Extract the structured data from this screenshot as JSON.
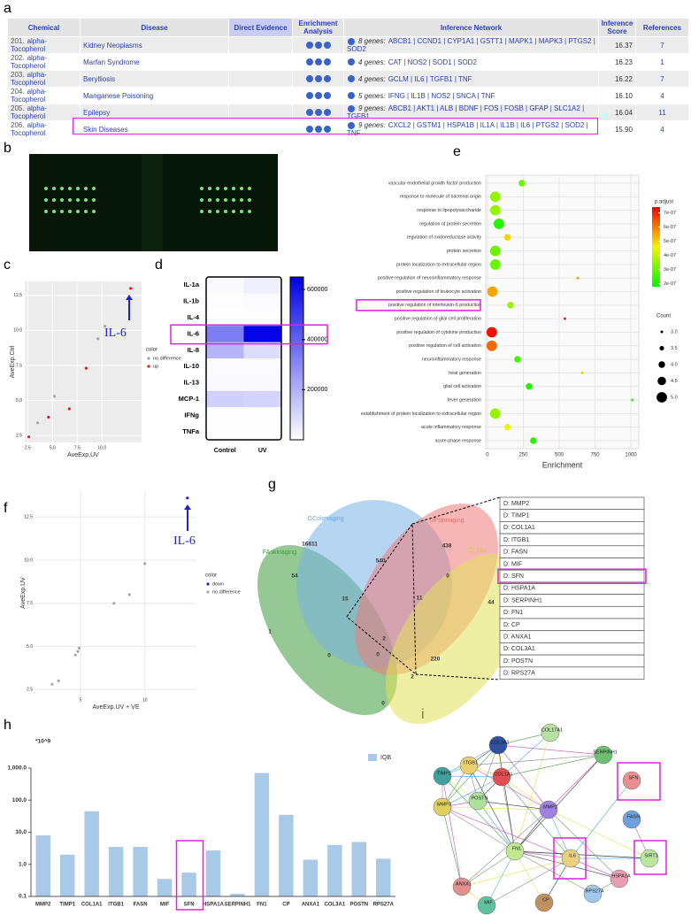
{
  "panel_labels": [
    "a",
    "b",
    "c",
    "d",
    "e",
    "f",
    "g",
    "h",
    "i"
  ],
  "table": {
    "header": [
      "Chemical",
      "Disease",
      "Direct Evidence",
      "Enrichment Analysis",
      "Inference Network",
      "Inference Score",
      "References"
    ],
    "rows": [
      [
        "201.",
        "alpha-Tocopherol",
        "Kidney Neoplasms",
        "8 genes:",
        "ABCB1 | CCND1 | CYP1A1 | GSTT1 | MAPK1 | MAPK3 | PTGS2 | SOD2",
        "16.37",
        "7"
      ],
      [
        "202.",
        "alpha-Tocopherol",
        "Marfan Syndrome",
        "4 genes:",
        "CAT | NOS2 | SOD1 | SOD2",
        "16.23",
        "1"
      ],
      [
        "203.",
        "alpha-Tocopherol",
        "Berylliosis",
        "4 genes:",
        "GCLM | IL6 | TGFB1 | TNF",
        "16.22",
        "7"
      ],
      [
        "204.",
        "alpha-Tocopherol",
        "Manganese Poisoning",
        "5 genes:",
        "IFNG | IL1B | NOS2 | SNCA | TNF",
        "16.10",
        "4"
      ],
      [
        "205.",
        "alpha-Tocopherol",
        "Epilepsy",
        "9 genes:",
        "ABCB1 | AKT1 | ALB | BDNF | FOS | FOSB | GFAP | SLC1A2 | TGFB1",
        "16.04",
        "11"
      ],
      [
        "206.",
        "alpha-Tocopherol",
        "Skin Diseases",
        "9 genes:",
        "CXCL2 | GSTM1 | HSPA1B | IL1A | IL1B | IL6 | PTGS2 | SOD2 | TNF",
        "15.90",
        "4"
      ]
    ]
  },
  "chart_data": [
    {
      "type": "scatter",
      "xlabel": "AveExp.UV",
      "ylabel": "AveExp.Ctrl",
      "legend_title": "color",
      "annotation": "IL-6",
      "grid": true,
      "xlim": [
        2.2,
        14
      ],
      "ylim": [
        2,
        13.5
      ],
      "xticks": [
        2.5,
        {
          "value": 5,
          "label": "5.0"
        },
        7.5,
        {
          "value": 10,
          "label": "10.0"
        }
      ],
      "yticks": [
        2.5,
        {
          "value": 5,
          "label": "5.0"
        },
        7.5,
        {
          "value": 10,
          "label": "10.0"
        },
        12.5
      ],
      "series": [
        {
          "name": "no.difference",
          "color": "#a6a6a6",
          "x": [
            3.5,
            5.2,
            9.6,
            10.3
          ],
          "values": [
            3.4,
            5.3,
            9.4,
            10.3
          ]
        },
        {
          "name": "up",
          "color": "#e41a1c",
          "x": [
            2.6,
            4.6,
            6.7,
            8.4,
            12.9
          ],
          "values": [
            2.4,
            3.8,
            4.4,
            7.3,
            13
          ]
        }
      ]
    },
    {
      "type": "heatmap",
      "categories": [
        "IL-1a",
        "IL-1b",
        "IL-4",
        "IL-6",
        "IL-8",
        "IL-10",
        "IL-13",
        "MCP-1",
        "IFNg",
        "TNFa"
      ],
      "columns": [
        "Control",
        "UV"
      ],
      "values": [
        [
          15000,
          40000
        ],
        [
          5000,
          10000
        ],
        [
          3000,
          3000
        ],
        [
          330000,
          640000
        ],
        [
          190000,
          90000
        ],
        [
          10000,
          10000
        ],
        [
          15000,
          15000
        ],
        [
          120000,
          110000
        ],
        [
          2000,
          2000
        ],
        [
          2000,
          2000
        ]
      ],
      "clim": [
        0,
        650000
      ],
      "colorbar_ticks": [
        200000,
        400000,
        600000
      ],
      "color": "#0000e6"
    },
    {
      "type": "dot",
      "xlabel": "Enrichment",
      "color_title": "p.adjust",
      "size_title": "Count",
      "categories": [
        "vascular endothelial growth factor production",
        "response to molecule of bacterial origin",
        "response to lipopolysaccharide",
        "regulation of protein secretion",
        "regulation of oxidoreductase activity",
        "protein secretion",
        "protein localization to extracellular region",
        "positive regulation of neuroinflammatory response",
        "positive regulation of leukocyte activation",
        "positive regulation of interleukin-6 production",
        "positive regulation of glial cell proliferation",
        "positive regulation of cytokine production",
        "positive regulation of cell activation",
        "neuroinflammatory response",
        "heat generation",
        "glial cell activation",
        "fever generation",
        "establishment of protein localization to extracellular region",
        "acute inflammatory response",
        "acute-phase response"
      ],
      "values": [
        240,
        55,
        55,
        80,
        140,
        55,
        55,
        630,
        35,
        160,
        540,
        30,
        30,
        210,
        660,
        290,
        1010,
        55,
        140,
        320
      ],
      "p_adjust": [
        3e-07,
        3.5e-07,
        3.5e-07,
        2.2e-07,
        5e-07,
        3e-07,
        3e-07,
        5.5e-07,
        5.5e-07,
        3.5e-07,
        7e-07,
        7.2e-07,
        6.2e-07,
        2.5e-07,
        5e-07,
        2.2e-07,
        2.5e-07,
        3.5e-07,
        4.5e-07,
        2.2e-07
      ],
      "count": [
        4,
        5,
        5,
        5,
        4,
        5,
        5,
        3,
        5,
        4,
        3,
        5,
        5,
        4,
        3,
        4,
        3,
        5,
        4,
        4
      ],
      "xlim": [
        -12,
        1055
      ],
      "xticks": [
        0,
        250,
        500,
        750,
        1000
      ],
      "clim": [
        1.8e-07,
        7.4e-07
      ],
      "colorbar_ticks": [
        {
          "value": 7e-07,
          "label": "7e-07"
        },
        {
          "value": 6e-07,
          "label": "6e-07"
        },
        {
          "value": 5e-07,
          "label": "5e-07"
        },
        {
          "value": 4e-07,
          "label": "4e-07"
        },
        {
          "value": 3e-07,
          "label": "3e-07"
        },
        {
          "value": 2e-07,
          "label": "2e-07"
        }
      ],
      "size_ticks": [
        {
          "value": 3,
          "label": "3.0"
        },
        3.5,
        {
          "value": 4,
          "label": "4.0"
        },
        4.5,
        {
          "value": 5,
          "label": "5.0"
        }
      ]
    },
    {
      "type": "scatter",
      "xlabel": "AveExp.UV + VE",
      "ylabel": "AveExp.UV",
      "legend_title": "color",
      "annotation": "IL-6",
      "grid": true,
      "xlim": [
        1.5,
        14
      ],
      "ylim": [
        2.2,
        14
      ],
      "xticks": [
        5,
        10
      ],
      "yticks": [
        2.5,
        {
          "value": 5,
          "label": "5.0"
        },
        7.5,
        {
          "value": 10,
          "label": "10.0"
        },
        12.5
      ],
      "series": [
        {
          "name": "down",
          "color": "#1f1fd6",
          "x": [
            13.3
          ],
          "values": [
            13.6
          ]
        },
        {
          "name": "no.difference",
          "color": "#a6a6a6",
          "x": [
            2.8,
            3.3,
            4.6,
            4.8,
            4.9,
            7.6,
            8.8,
            10
          ],
          "values": [
            2.8,
            3.0,
            4.5,
            4.7,
            4.9,
            7.5,
            8.0,
            9.8
          ]
        }
      ]
    },
    {
      "type": "bar",
      "log_scale": true,
      "unit_label": "*10^9",
      "categories": [
        "MMP2",
        "TIMP1",
        "COL1A1",
        "ITGB1",
        "FASN",
        "MIF",
        "SFN",
        "HSPA1A",
        "SERPINH1",
        "FN1",
        "CP",
        "ANXA1",
        "COL3A1",
        "POSTN",
        "RPS27A"
      ],
      "series": [
        {
          "name": "IQB",
          "color": "#a9c9e8",
          "values": [
            8,
            2,
            45,
            3.5,
            3.5,
            0.35,
            0.55,
            2.7,
            0.12,
            700,
            35,
            1.4,
            4,
            5,
            1.5
          ]
        }
      ],
      "ylim": [
        0.1,
        1000
      ],
      "yticks": [
        0.1,
        {
          "value": 1,
          "label": "1.0"
        },
        {
          "value": 10,
          "label": "10.0"
        },
        {
          "value": 100,
          "label": "100.0"
        },
        {
          "value": 1000,
          "label": "1,000.0"
        }
      ]
    }
  ],
  "venn": {
    "sets": [
      "GColonaging",
      "UPskinaging",
      "FAskinaging",
      "C_Exo"
    ],
    "counts": [
      "16811",
      "438",
      "540",
      "54",
      "0",
      "44",
      "1",
      "15",
      "11",
      "2",
      "220",
      "0",
      "0",
      "2",
      "0"
    ]
  },
  "gene_list": [
    "D: MMP2",
    "D: TIMP1",
    "D: COL1A1",
    "D: ITGB1",
    "D: FASN",
    "D: MIF",
    "D: SFN",
    "D: HSPA1A",
    "D: SERPINH1",
    "D: FN1",
    "D: CP",
    "D: ANXA1",
    "D: COL3A1",
    "D: POSTN",
    "D: RPS27A"
  ],
  "network": {
    "nodes": [
      "COL3A1",
      "COL17A1",
      "SERPINH1",
      "ITGB1",
      "TIMP1",
      "COL1A1",
      "SFN",
      "POSTN",
      "MMP3",
      "MMP2",
      "FASN",
      "FN1",
      "SIRT1",
      "ANXA1",
      "IL6",
      "HSPA1A",
      "MIF",
      "CP",
      "RPS27A"
    ]
  }
}
